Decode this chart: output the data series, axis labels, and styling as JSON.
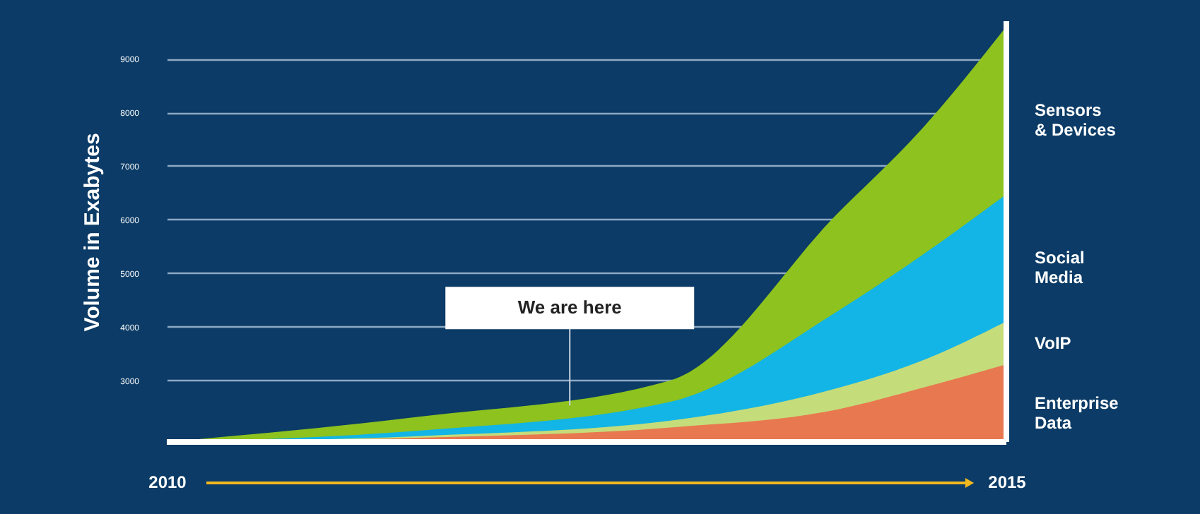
{
  "chart_data": {
    "type": "area",
    "ylabel": "Volume in Exabytes",
    "x": [
      2010,
      2011.5,
      2013,
      2014,
      2014.5,
      2015
    ],
    "xlim": [
      2010,
      2015
    ],
    "xticks": [
      2010,
      2015
    ],
    "ylim": [
      1850,
      9700
    ],
    "yticks": [
      3000,
      4000,
      5000,
      6000,
      7000,
      8000,
      9000
    ],
    "grid": "y",
    "series": [
      {
        "name": "Sensors\n& Devices",
        "color": "#8dc21f",
        "values": [
          1850,
          2320,
          3000,
          6130,
          7700,
          9600
        ]
      },
      {
        "name": "Social\nMedia",
        "color": "#12b5e6",
        "values": [
          1850,
          2060,
          2600,
          4300,
          5340,
          6470
        ]
      },
      {
        "name": "VoIP",
        "color": "#c5dc7a",
        "values": [
          1850,
          1960,
          2250,
          2860,
          3370,
          4100
        ]
      },
      {
        "name": "Enterprise\nData",
        "color": "#e8784f",
        "values": [
          1850,
          1930,
          2120,
          2460,
          2860,
          3300
        ]
      }
    ],
    "annotations": [
      {
        "text": "We are here",
        "x": 2012.4,
        "y": 2530
      }
    ]
  }
}
